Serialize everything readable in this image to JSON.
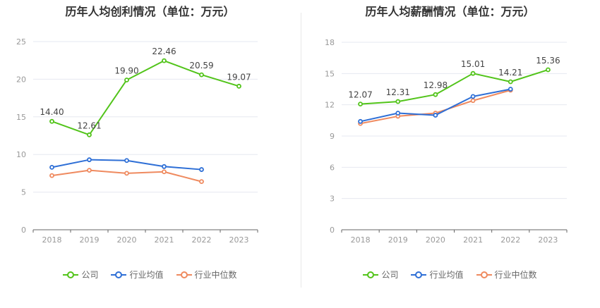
{
  "colors": {
    "company": "#52c41a",
    "industry_avg": "#2e6fd6",
    "industry_median": "#ef8a5f",
    "grid": "#e6e8f0",
    "axis": "#666666"
  },
  "legend_labels": [
    "公司",
    "行业均值",
    "行业中位数"
  ],
  "chart_data": [
    {
      "type": "line",
      "title": "历年人均创利情况（单位：万元）",
      "categories": [
        "2018",
        "2019",
        "2020",
        "2021",
        "2022",
        "2023"
      ],
      "ylim": [
        0,
        25
      ],
      "yticks": [
        0,
        5,
        10,
        15,
        20,
        25
      ],
      "grid": true,
      "legend_position": "bottom",
      "series": [
        {
          "name": "公司",
          "color_key": "company",
          "values": [
            14.4,
            12.61,
            19.9,
            22.46,
            20.59,
            19.07
          ],
          "labels": [
            "14.40",
            "12.61",
            "19.90",
            "22.46",
            "20.59",
            "19.07"
          ]
        },
        {
          "name": "行业均值",
          "color_key": "industry_avg",
          "values": [
            8.3,
            9.3,
            9.2,
            8.4,
            8.0,
            null
          ]
        },
        {
          "name": "行业中位数",
          "color_key": "industry_median",
          "values": [
            7.2,
            7.9,
            7.5,
            7.7,
            6.4,
            null
          ]
        }
      ]
    },
    {
      "type": "line",
      "title": "历年人均薪酬情况（单位：万元）",
      "categories": [
        "2018",
        "2019",
        "2020",
        "2021",
        "2022",
        "2023"
      ],
      "ylim": [
        0,
        18
      ],
      "yticks": [
        0,
        3,
        6,
        9,
        12,
        15,
        18
      ],
      "grid": true,
      "legend_position": "bottom",
      "series": [
        {
          "name": "公司",
          "color_key": "company",
          "values": [
            12.07,
            12.31,
            12.98,
            15.01,
            14.21,
            15.36
          ],
          "labels": [
            "12.07",
            "12.31",
            "12.98",
            "15.01",
            "14.21",
            "15.36"
          ]
        },
        {
          "name": "行业均值",
          "color_key": "industry_avg",
          "values": [
            10.4,
            11.2,
            11.0,
            12.8,
            13.5,
            null
          ]
        },
        {
          "name": "行业中位数",
          "color_key": "industry_median",
          "values": [
            10.2,
            10.9,
            11.2,
            12.4,
            13.4,
            null
          ]
        }
      ]
    }
  ]
}
